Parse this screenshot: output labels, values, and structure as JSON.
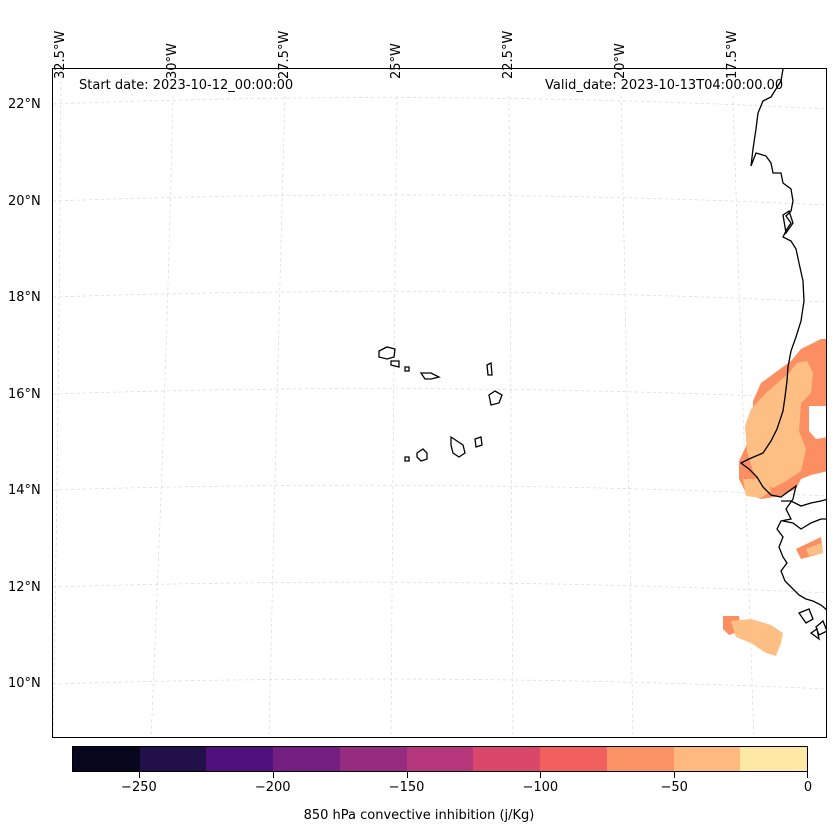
{
  "header": {
    "start_date": "Start date: 2023-10-12_00:00:00",
    "valid_date": "Valid_date: 2023-10-13T04:00:00.00"
  },
  "longitude_labels": [
    "32.5°W",
    "30°W",
    "27.5°W",
    "25°W",
    "22.5°W",
    "20°W",
    "17.5°W"
  ],
  "latitude_labels": [
    "22°N",
    "20°N",
    "18°N",
    "16°N",
    "14°N",
    "12°N",
    "10°N"
  ],
  "colorbar": {
    "label": "850 hPa convective inhibition (j/Kg)",
    "tick_labels": [
      "−250",
      "−200",
      "−150",
      "−100",
      "−50",
      "0"
    ],
    "colors": [
      "#07061c",
      "#22104b",
      "#4f117b",
      "#721f81",
      "#952c80",
      "#b5367a",
      "#db476a",
      "#f1605d",
      "#fc9366",
      "#feb97f",
      "#fee8a5"
    ]
  },
  "map_colors": {
    "coast": "#000000",
    "grid": "#d8d8d8",
    "cin_medium": "#fc8f62",
    "cin_light": "#fdbf84"
  }
}
